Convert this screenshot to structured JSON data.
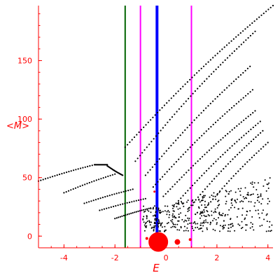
{
  "chart_data": {
    "type": "scatter",
    "xlabel": "E",
    "ylabel": "<M>",
    "xlim": [
      -5,
      4.2
    ],
    "ylim": [
      -10,
      197
    ],
    "x_ticks": [
      {
        "value": -4,
        "label": "-4"
      },
      {
        "value": -2,
        "label": "-2"
      },
      {
        "value": 0,
        "label": "0"
      },
      {
        "value": 2,
        "label": "2"
      },
      {
        "value": 4,
        "label": "4"
      }
    ],
    "y_ticks": [
      {
        "value": 0,
        "label": "0"
      },
      {
        "value": 50,
        "label": "50"
      },
      {
        "value": 100,
        "label": "100"
      },
      {
        "value": 150,
        "label": "150"
      }
    ],
    "grid": false,
    "colors": {
      "axis": "#ff0000",
      "points": "#000000",
      "green_line": "#006400",
      "magenta_line": "#ff00ff",
      "blue_line": "#0000ff",
      "blob": "#ff0000"
    },
    "vertical_lines": [
      {
        "x": -1.6,
        "color": "#006400",
        "width": 2
      },
      {
        "x": -1.0,
        "color": "#ff00ff",
        "width": 2
      },
      {
        "x": -0.35,
        "color": "#0000ff",
        "width": 4
      },
      {
        "x": 1.0,
        "color": "#ff00ff",
        "width": 2
      }
    ],
    "red_markers": [
      {
        "x": -0.3,
        "y": -5,
        "size": 14
      },
      {
        "x": 0.45,
        "y": -5,
        "size": 4
      },
      {
        "x": -0.75,
        "y": -2,
        "size": 2
      },
      {
        "x": 0.95,
        "y": -3,
        "size": 2
      },
      {
        "x": -0.45,
        "y": 38,
        "size": 1.5
      }
    ],
    "series_bands": [
      {
        "x_from": -5.0,
        "x_to": -2.8,
        "y_from": 47,
        "y_to": 61
      },
      {
        "x_from": -2.8,
        "x_to": -2.3,
        "y_from": 61,
        "y_to": 61
      },
      {
        "x_from": -2.3,
        "x_to": -1.7,
        "y_from": 60,
        "y_to": 52
      },
      {
        "x_from": -4.0,
        "x_to": -2.0,
        "y_from": 37,
        "y_to": 53
      },
      {
        "x_from": -3.2,
        "x_to": -1.3,
        "y_from": 28,
        "y_to": 40
      },
      {
        "x_from": -2.6,
        "x_to": -0.8,
        "y_from": 22,
        "y_to": 32
      },
      {
        "x_from": -2.0,
        "x_to": -0.6,
        "y_from": 15,
        "y_to": 24
      },
      {
        "x_from": -1.6,
        "x_to": 4.2,
        "y_from": 76,
        "y_to": 197
      },
      {
        "x_from": -1.2,
        "x_to": 3.5,
        "y_from": 64,
        "y_to": 175
      },
      {
        "x_from": -0.8,
        "x_to": 3.3,
        "y_from": 52,
        "y_to": 145
      },
      {
        "x_from": -0.5,
        "x_to": 3.4,
        "y_from": 42,
        "y_to": 125
      },
      {
        "x_from": -0.1,
        "x_to": 3.5,
        "y_from": 34,
        "y_to": 107
      },
      {
        "x_from": 0.4,
        "x_to": 3.7,
        "y_from": 28,
        "y_to": 98
      },
      {
        "x_from": 0.9,
        "x_to": 3.8,
        "y_from": 24,
        "y_to": 90
      },
      {
        "x_from": 1.4,
        "x_to": 4.0,
        "y_from": 20,
        "y_to": 80
      }
    ]
  }
}
